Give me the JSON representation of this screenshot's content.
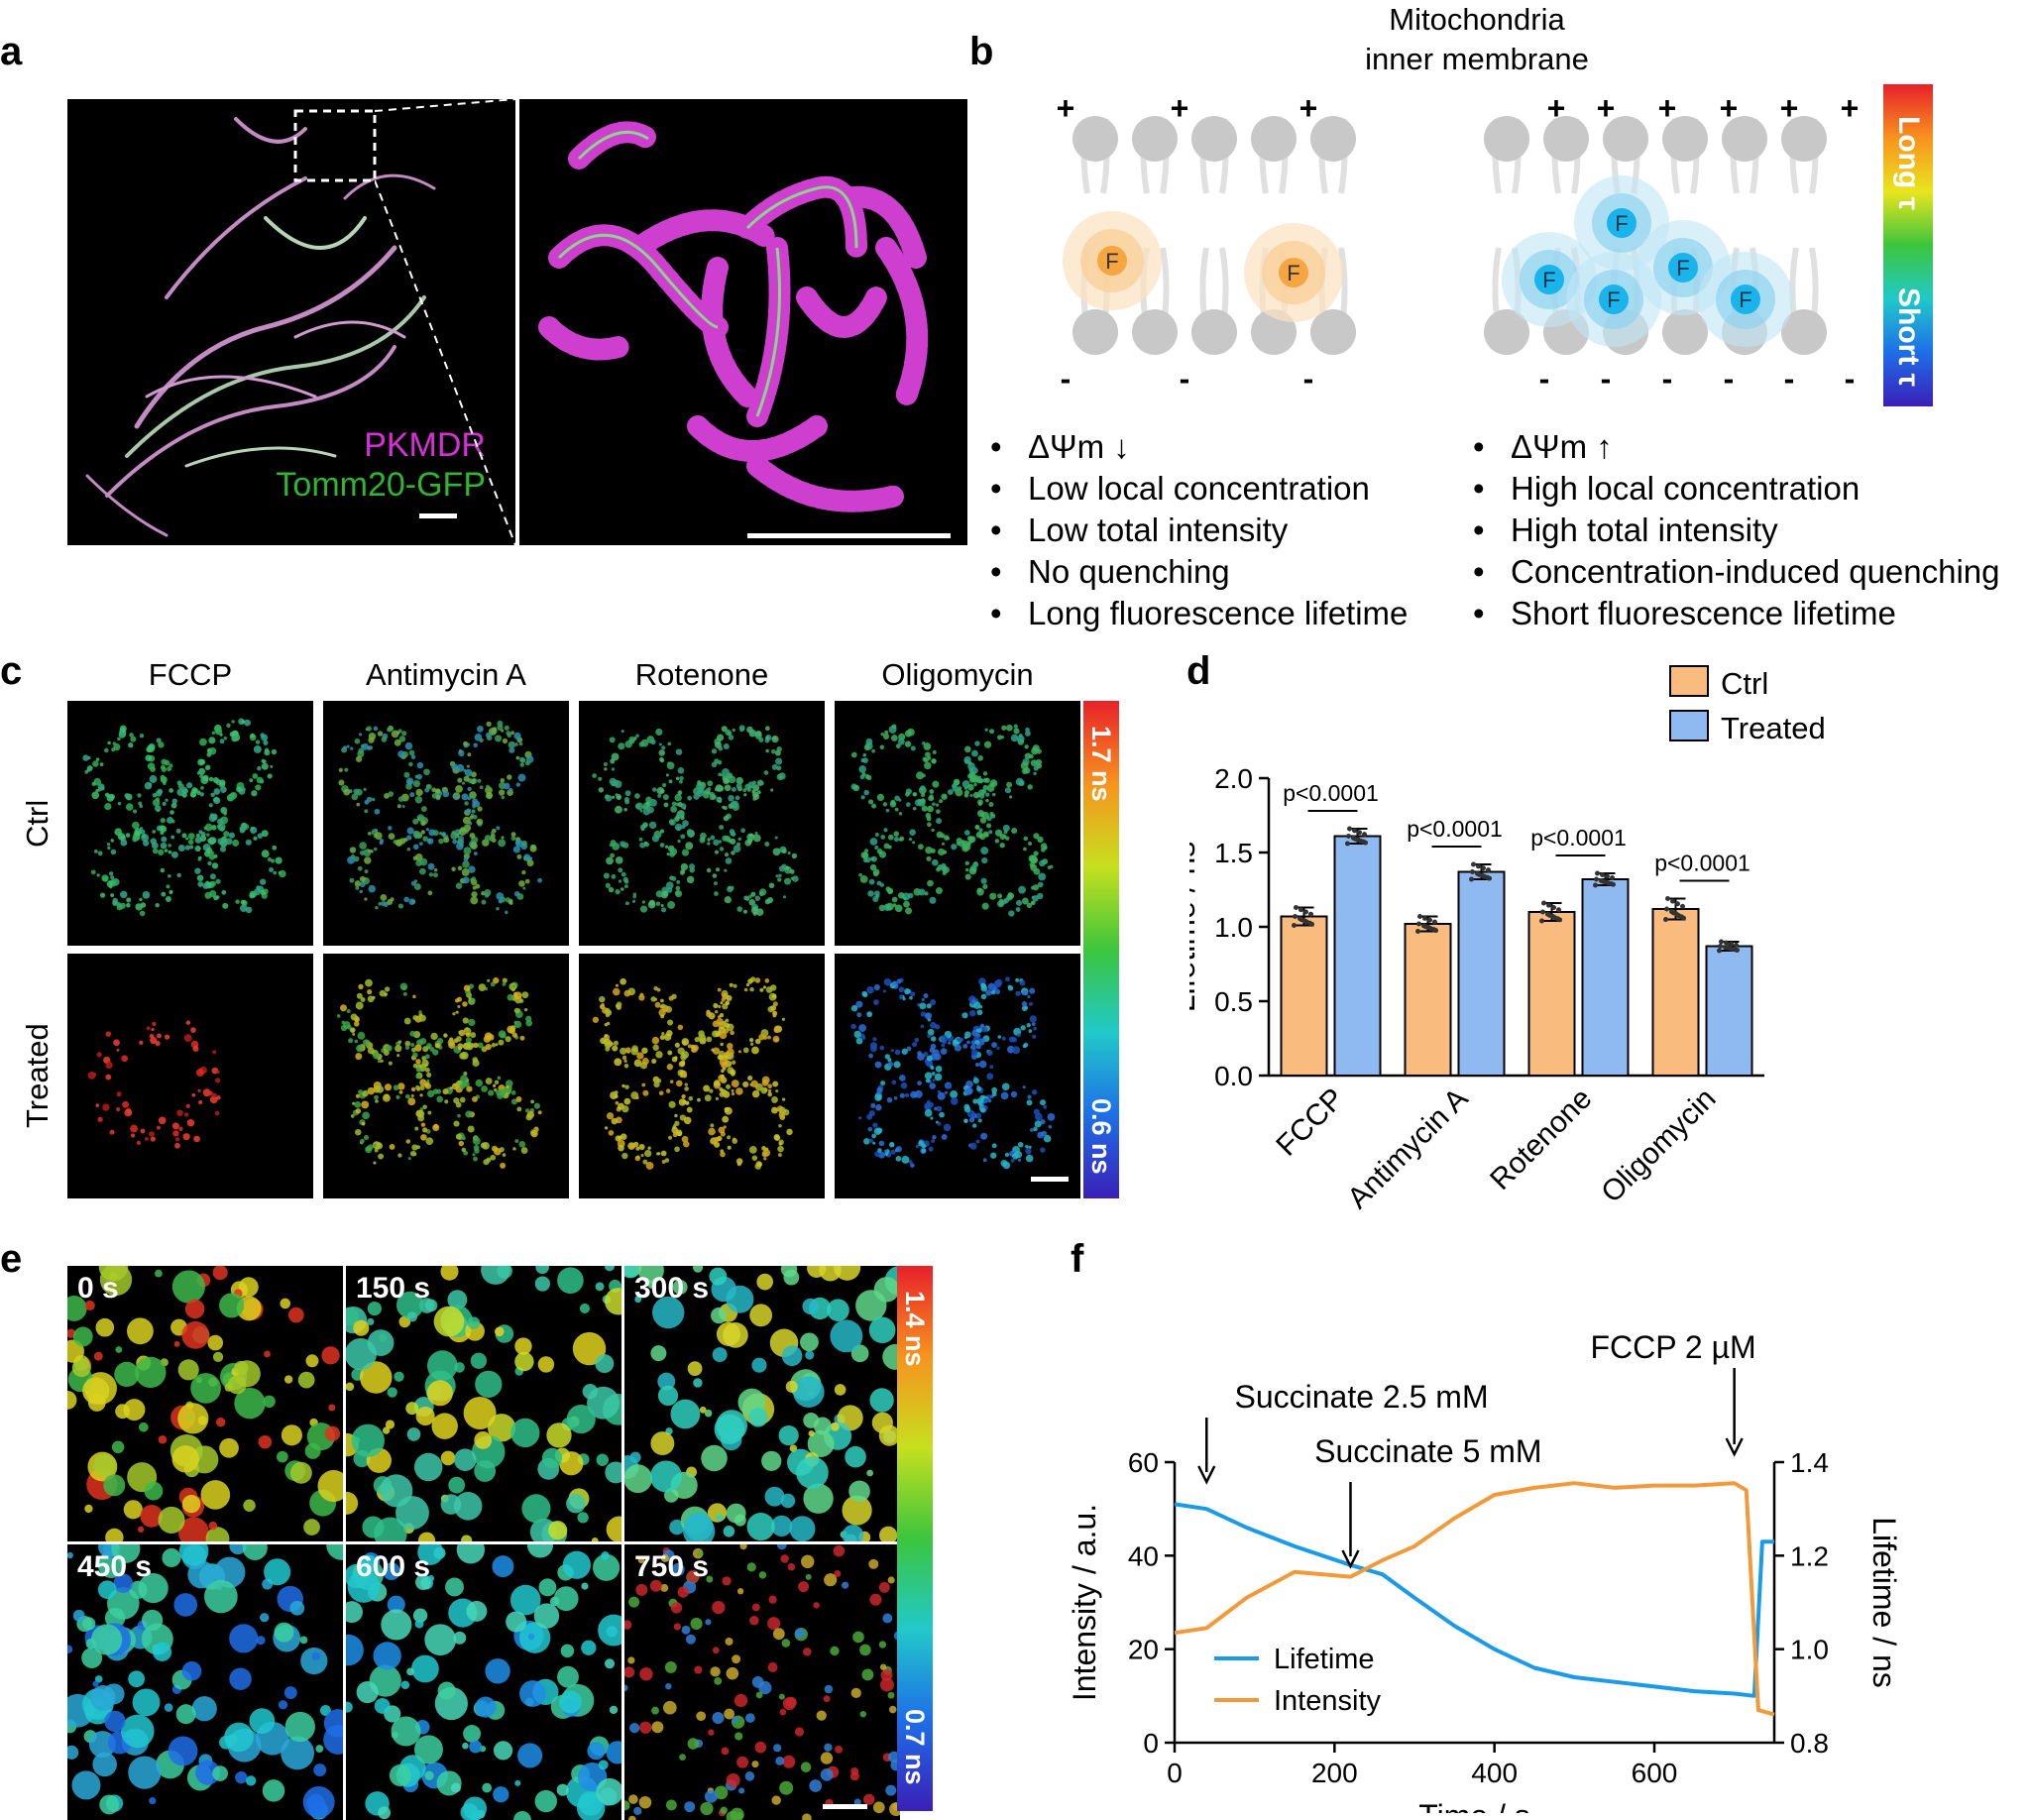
{
  "panels": {
    "a": "a",
    "b": "b",
    "c": "c",
    "d": "d",
    "e": "e",
    "f": "f"
  },
  "panel_a": {
    "label1": "PKMDR",
    "label2": "Tomm20-GFP",
    "color1": "#d62fd6",
    "color2": "#2fb52f"
  },
  "panel_b": {
    "title_line1": "Mitochondria",
    "title_line2": "inner membrane",
    "fluor_symbol": "F",
    "plus": "+",
    "minus": "-",
    "colorbar_top": "Long τ",
    "colorbar_bottom": "Short τ",
    "left_list": [
      "ΔΨm ↓",
      "Low local concentration",
      "Low total intensity",
      "No quenching",
      "Long fluorescence lifetime"
    ],
    "right_list": [
      "ΔΨm ↑",
      "High local concentration",
      "High total intensity",
      "Concentration-induced quenching",
      "Short fluorescence lifetime"
    ]
  },
  "panel_c": {
    "columns": [
      "FCCP",
      "Antimycin A",
      "Rotenone",
      "Oligomycin"
    ],
    "rows": [
      "Ctrl",
      "Treated"
    ],
    "scale_max": "1.7 ns",
    "scale_min": "0.6 ns"
  },
  "panel_e": {
    "times": [
      "0 s",
      "150 s",
      "300 s",
      "450 s",
      "600 s",
      "750 s"
    ],
    "scale_max": "1.4 ns",
    "scale_min": "0.7 ns"
  },
  "chart_data": [
    {
      "type": "bar",
      "panel": "d",
      "categories": [
        "FCCP",
        "Antimycin A",
        "Rotenone",
        "Oligomycin"
      ],
      "series": [
        {
          "name": "Ctrl",
          "color": "#f9bc7e",
          "values": [
            1.07,
            1.02,
            1.1,
            1.12
          ],
          "errors": [
            0.06,
            0.05,
            0.06,
            0.07
          ]
        },
        {
          "name": "Treated",
          "color": "#8fbaf1",
          "values": [
            1.61,
            1.37,
            1.32,
            0.87
          ],
          "errors": [
            0.05,
            0.05,
            0.04,
            0.03
          ]
        }
      ],
      "ylabel": "Lifetime / ns",
      "ylim": [
        0,
        2.0
      ],
      "yticks": [
        "0.0",
        "0.5",
        "1.0",
        "1.5",
        "2.0"
      ],
      "annotations": [
        "p<0.0001",
        "p<0.0001",
        "p<0.0001",
        "p<0.0001"
      ]
    },
    {
      "type": "line",
      "panel": "f",
      "xlabel": "Time / s",
      "ylabel_left": "Intensity / a.u.",
      "ylabel_right": "Lifetime / ns",
      "xlim": [
        0,
        750
      ],
      "ylim_left": [
        0,
        60
      ],
      "ylim_right": [
        0.8,
        1.4
      ],
      "xticks": [
        "0",
        "200",
        "400",
        "600"
      ],
      "yticks_left": [
        "0",
        "20",
        "40",
        "60"
      ],
      "yticks_right": [
        "0.8",
        "1.0",
        "1.2",
        "1.4"
      ],
      "series": [
        {
          "name": "Lifetime",
          "axis": "right",
          "color": "#1a9be8",
          "x": [
            0,
            40,
            90,
            150,
            220,
            260,
            300,
            350,
            400,
            450,
            500,
            550,
            600,
            650,
            700,
            725,
            735,
            750
          ],
          "y": [
            1.31,
            1.3,
            1.26,
            1.22,
            1.18,
            1.16,
            1.11,
            1.05,
            1.0,
            0.96,
            0.94,
            0.93,
            0.92,
            0.91,
            0.905,
            0.9,
            1.23,
            1.23
          ]
        },
        {
          "name": "Intensity",
          "axis": "left",
          "color": "#f29a3a",
          "x": [
            0,
            40,
            90,
            150,
            220,
            260,
            300,
            350,
            400,
            450,
            500,
            550,
            600,
            650,
            700,
            715,
            730,
            750
          ],
          "y": [
            23.5,
            24.5,
            31,
            36.5,
            35.5,
            39,
            42,
            48,
            53,
            54.5,
            55.5,
            54.5,
            55,
            55,
            55.5,
            54,
            7,
            6
          ]
        }
      ],
      "annotations": [
        "Succinate 2.5 mM",
        "Succinate 5 mM",
        "FCCP 2 µM"
      ]
    }
  ]
}
